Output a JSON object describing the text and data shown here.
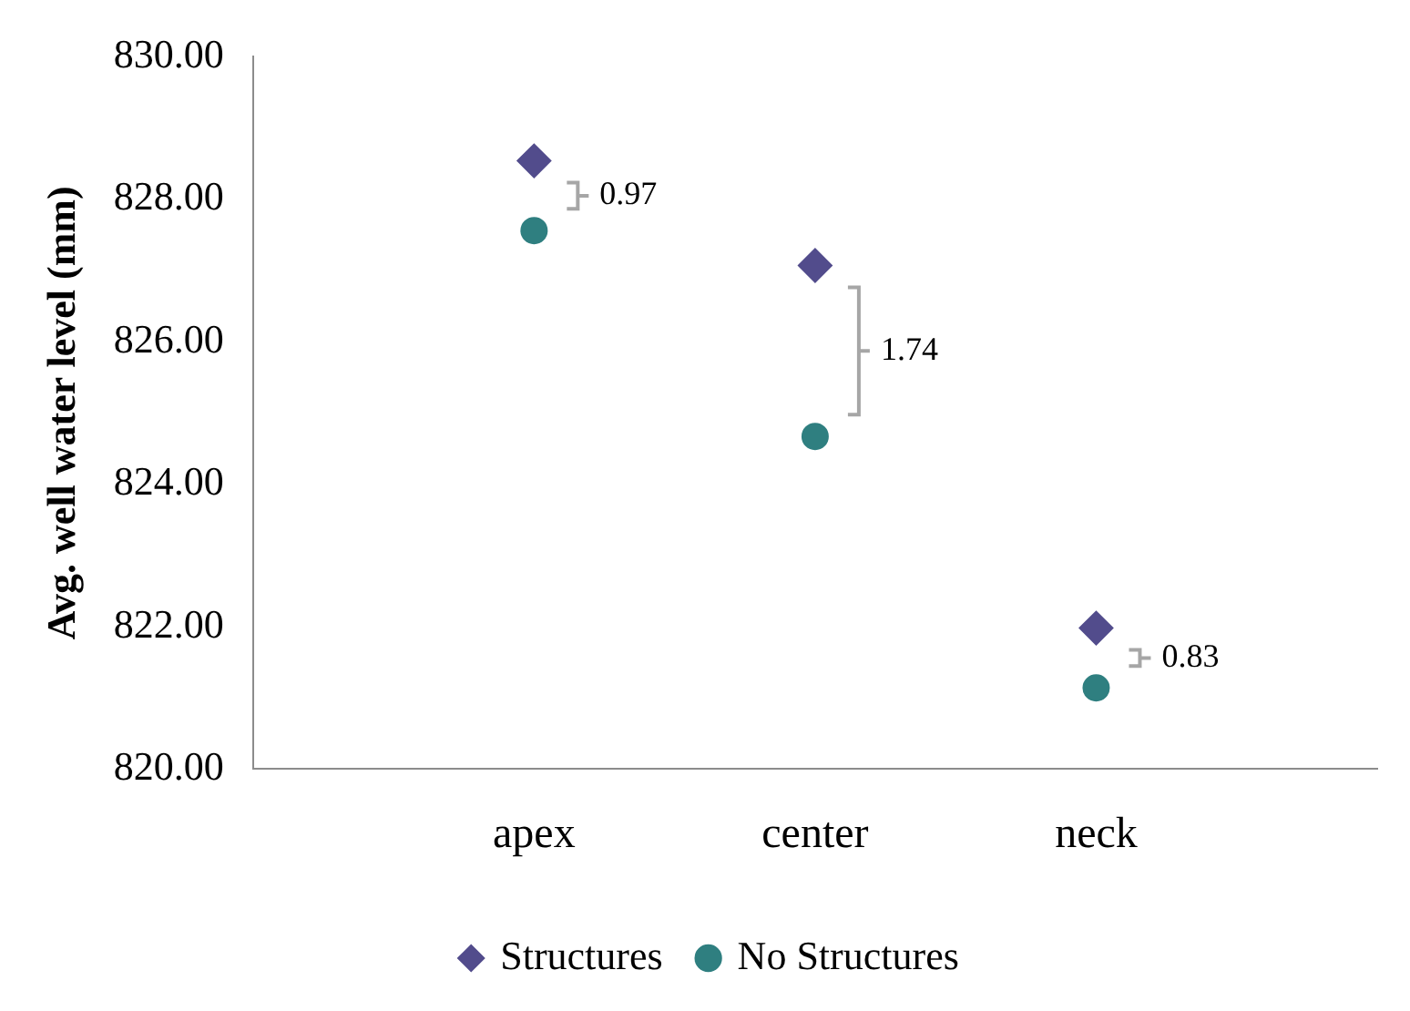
{
  "chart_data": {
    "type": "scatter",
    "ylabel": "Avg. well water level (mm)",
    "categories": [
      "apex",
      "center",
      "neck"
    ],
    "series": [
      {
        "name": "Structures",
        "color": "#524c8c",
        "marker": "diamond",
        "values": [
          828.54,
          827.07,
          821.98
        ]
      },
      {
        "name": "No Structures",
        "color": "#2f7f80",
        "marker": "circle",
        "values": [
          827.56,
          824.67,
          821.14
        ]
      }
    ],
    "annotations": [
      "0.97",
      "1.74",
      "0.83"
    ],
    "ylim": [
      820,
      830
    ],
    "yticks": [
      {
        "value": 820,
        "label": "820.00"
      },
      {
        "value": 822,
        "label": "822.00"
      },
      {
        "value": 824,
        "label": "824.00"
      },
      {
        "value": 826,
        "label": "826.00"
      },
      {
        "value": 828,
        "label": "828.00"
      },
      {
        "value": 830,
        "label": "830.00"
      }
    ],
    "grid": false,
    "legend": "bottom"
  }
}
